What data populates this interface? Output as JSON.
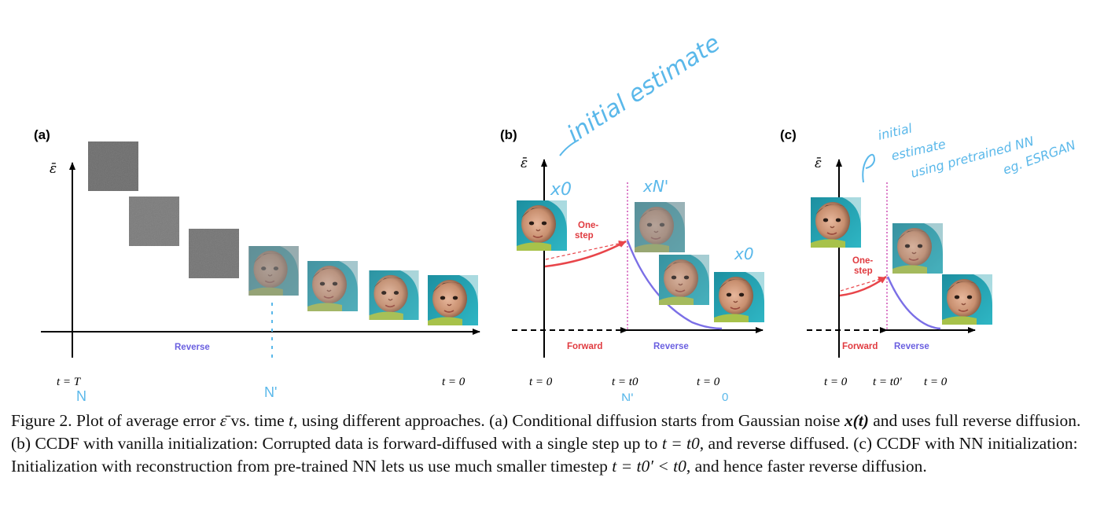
{
  "figure": {
    "panels": [
      {
        "id": "a",
        "label": "(a)",
        "y_axis_label": "ε̄",
        "arrow_labels": [
          "Reverse"
        ],
        "tick_labels": [
          "t = T",
          "t = 0"
        ],
        "annotations": [
          "N",
          "N'"
        ]
      },
      {
        "id": "b",
        "label": "(b)",
        "y_axis_label": "ε̄",
        "arrow_labels": [
          "Forward",
          "Reverse"
        ],
        "step_label": [
          "One-",
          "step"
        ],
        "tick_labels": [
          "t = 0",
          "t = t0",
          "t = 0"
        ],
        "annotations": [
          "initial estimate",
          "x0",
          "xN'",
          "x0",
          "N'",
          "0"
        ]
      },
      {
        "id": "c",
        "label": "(c)",
        "y_axis_label": "ε̄",
        "arrow_labels": [
          "Forward",
          "Reverse"
        ],
        "step_label": [
          "One-",
          "step"
        ],
        "tick_labels": [
          "t = 0",
          "t = t0'",
          "t = 0"
        ],
        "annotations": [
          "initial",
          "estimate",
          "using pretrained NN",
          "eg. ESRGAN"
        ]
      }
    ],
    "colors": {
      "axis": "#000000",
      "reverse_curve": "#7b6fe6",
      "forward_curve": "#e8454a",
      "reverse_text": "#6a5fe0",
      "forward_text": "#e03a3f",
      "handwriting": "#5ab8ea",
      "dotted_vertical": "#d056b7"
    }
  },
  "caption": {
    "prefix": "Figure 2.  Plot of average error",
    "err": "ε̄",
    "mid1": "vs.  time",
    "t": "t",
    "rest1": ", using different approaches.  (a) Conditional diffusion starts from Gaussian noise",
    "xt": "x(t)",
    "rest2": "and uses full reverse diffusion.  (b) CCDF with vanilla initialization: Corrupted data is forward-diffused with a single step up to",
    "t0a": "t = t0",
    "rest3": ", and reverse diffused. (c) CCDF with NN initialization: Initialization with reconstruction from pre-trained NN lets us use much smaller timestep",
    "t0b": "t = t0′ < t0",
    "rest4": ", and hence faster reverse diffusion."
  }
}
